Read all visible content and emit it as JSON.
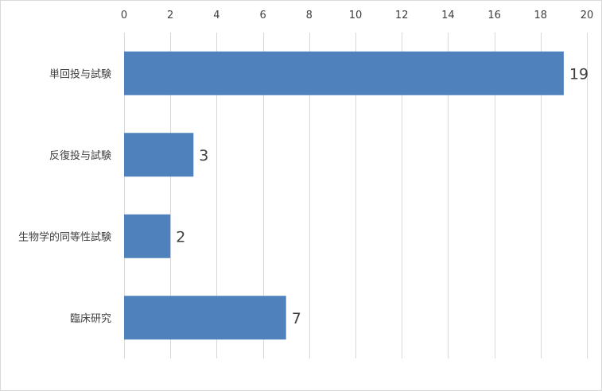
{
  "chart_data": {
    "type": "bar",
    "orientation": "horizontal",
    "title": "",
    "xlabel": "",
    "ylabel": "",
    "categories": [
      "単回投与試験",
      "反復投与試験",
      "生物学的同等性試験",
      "臨床研究"
    ],
    "values": [
      19,
      3,
      2,
      7
    ],
    "data_labels": [
      "19",
      "3",
      "2",
      "7"
    ],
    "xlim": [
      0,
      20
    ],
    "x_ticks": [
      0,
      2,
      4,
      6,
      8,
      10,
      12,
      14,
      16,
      18,
      20
    ],
    "x_tick_labels": [
      "0",
      "2",
      "4",
      "6",
      "8",
      "10",
      "12",
      "14",
      "16",
      "18",
      "20"
    ],
    "x_axis_position": "top",
    "grid": true,
    "legend": "none",
    "bar_color": "#4f81bd",
    "grid_color": "#d9d9d9"
  }
}
